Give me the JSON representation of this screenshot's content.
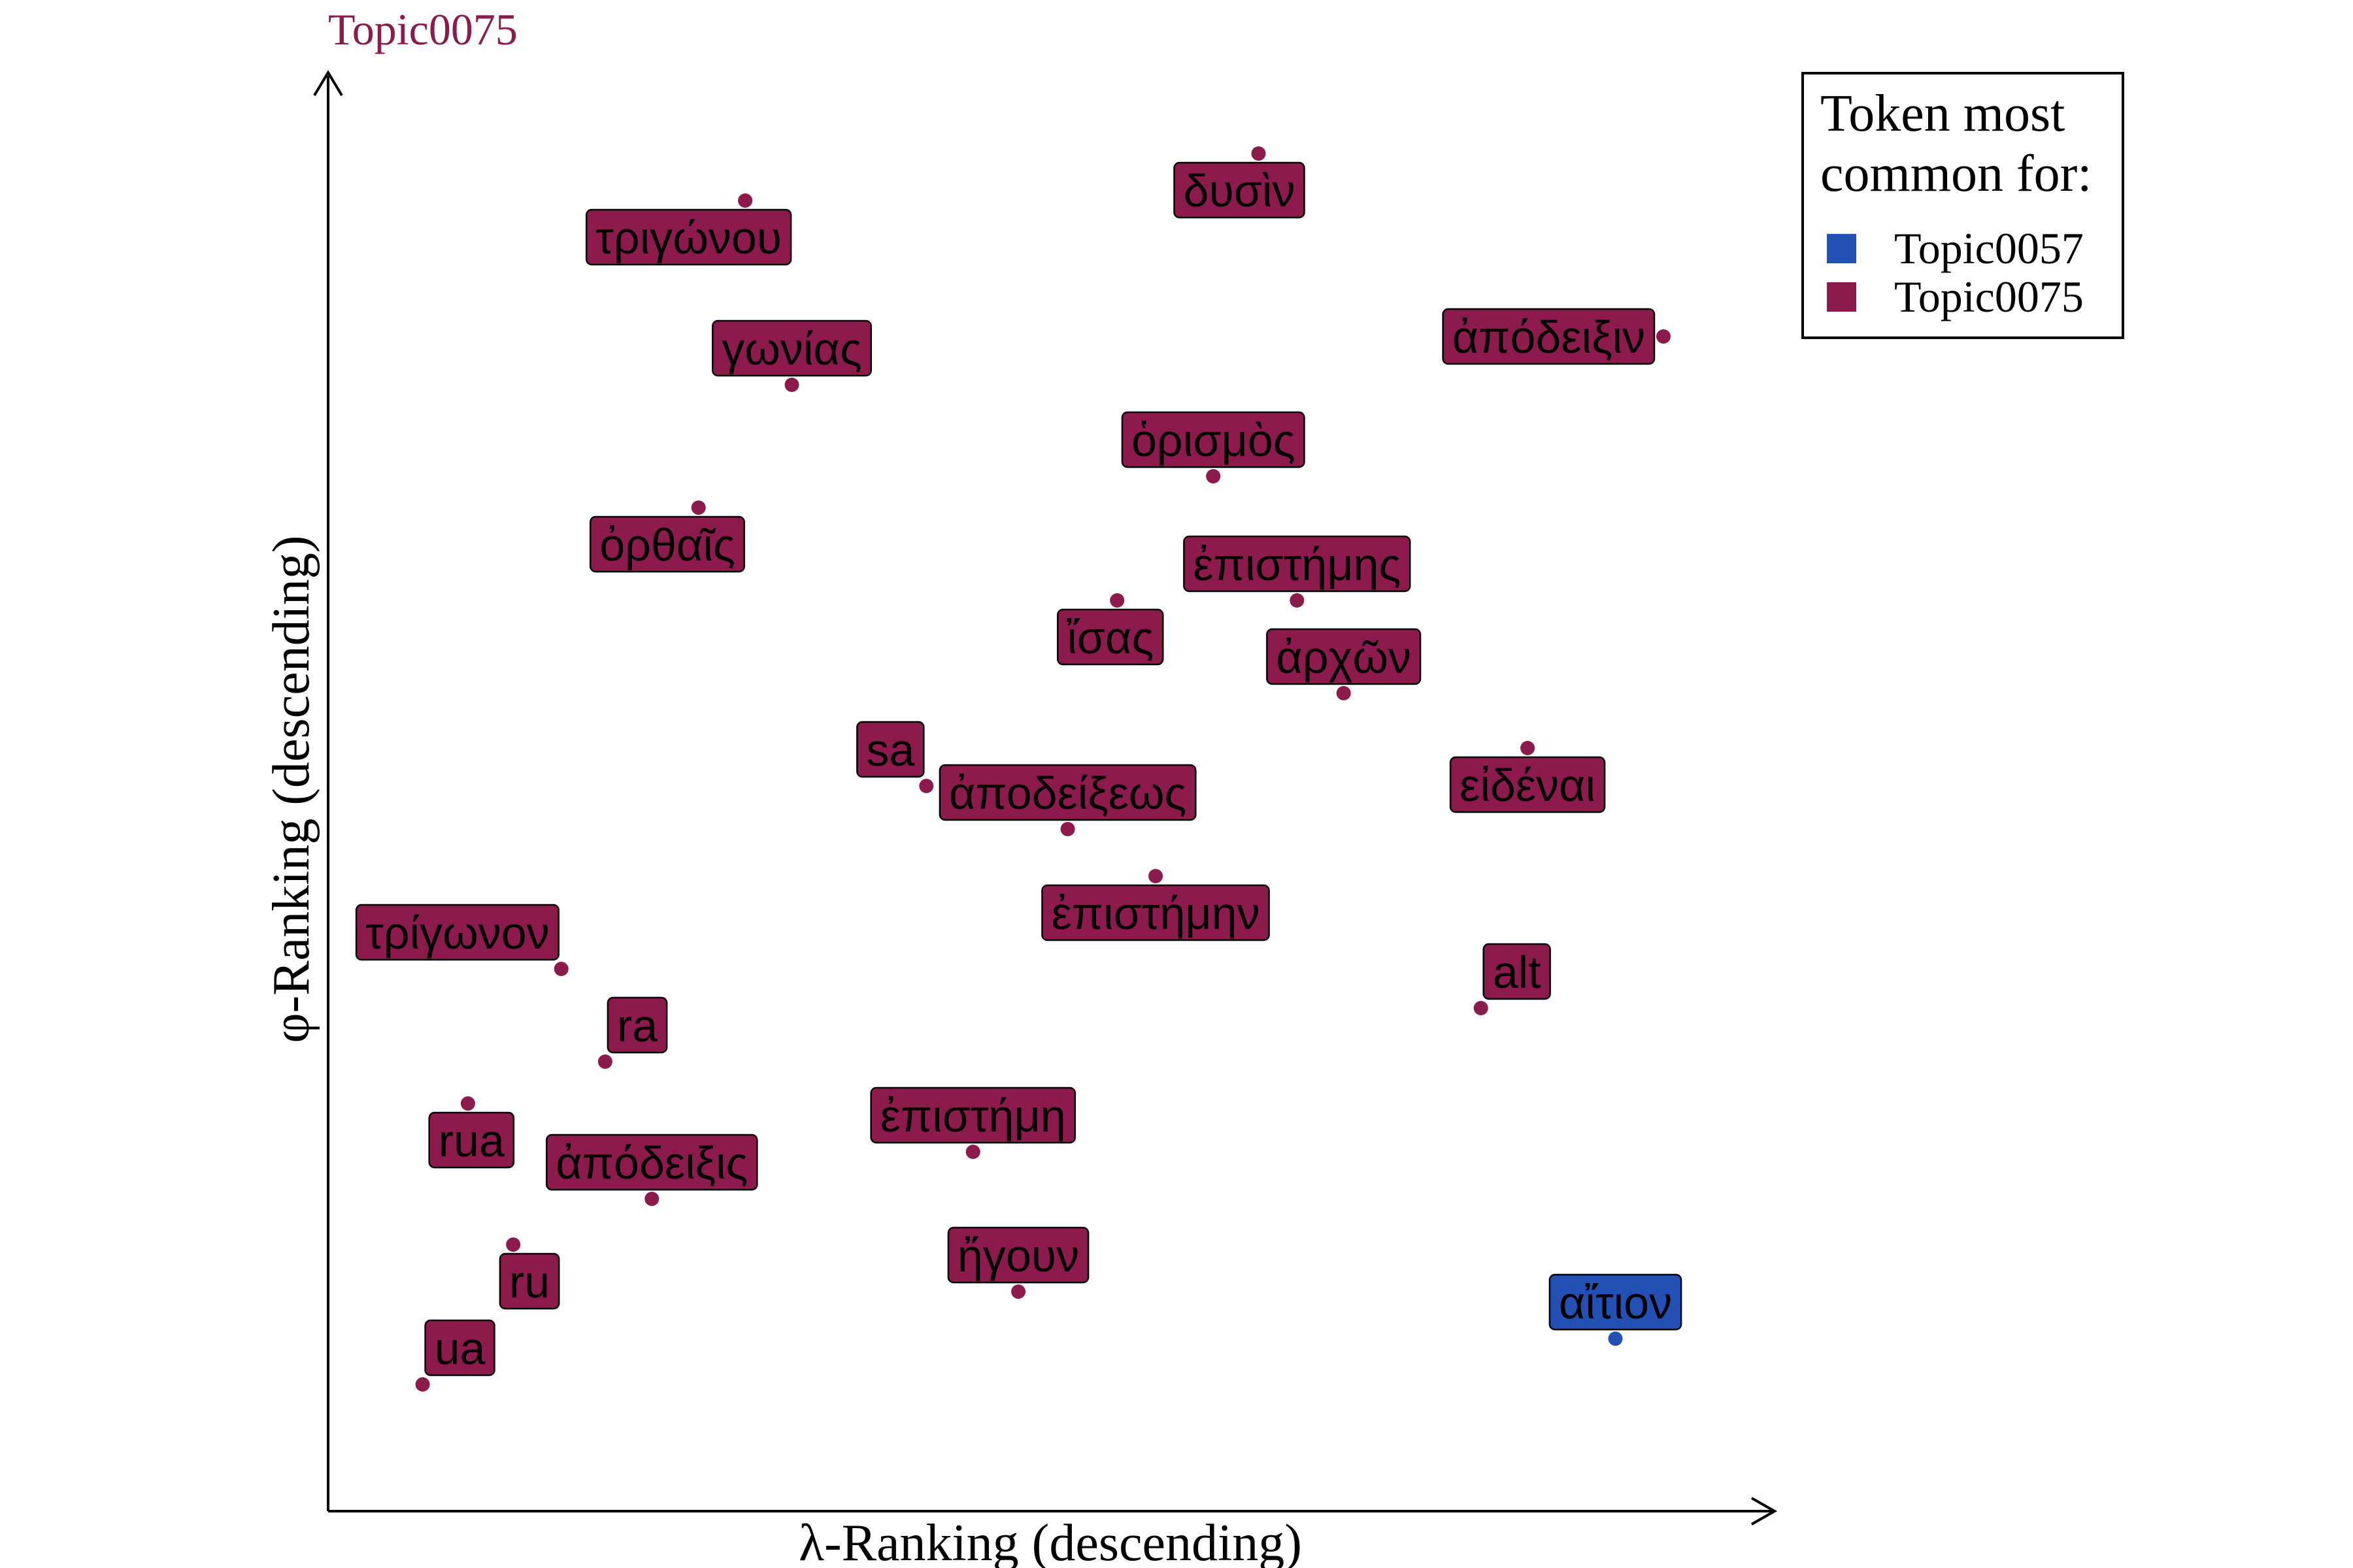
{
  "chart_data": {
    "type": "scatter",
    "title": "Topic0075",
    "xlabel": "λ-Ranking (descending)",
    "ylabel": "φ-Ranking (descending)",
    "legend": {
      "title_line1": "Token most",
      "title_line2": "common for:",
      "placement": "top-right",
      "entries": [
        {
          "label": "Topic0057",
          "color": "#2350b5"
        },
        {
          "label": "Topic0075",
          "color": "#8c1a4c"
        }
      ]
    },
    "colors": {
      "Topic0057": "#2350b5",
      "Topic0075": "#8c1a4c"
    },
    "axes": {
      "x_ticks": false,
      "y_ticks": false,
      "grid": false,
      "xlim": [
        0,
        100
      ],
      "ylim": [
        0,
        100
      ]
    },
    "points": [
      {
        "token": "δυσὶν",
        "x": 65.5,
        "y": 99.0,
        "topic": "Topic0075",
        "label_side": "below-left"
      },
      {
        "token": "τριγώνου",
        "x": 28.1,
        "y": 95.4,
        "topic": "Topic0075",
        "label_side": "below-left"
      },
      {
        "token": "ἀπόδειξιν",
        "x": 95.0,
        "y": 85.0,
        "topic": "Topic0075",
        "label_side": "left"
      },
      {
        "token": "γωνίας",
        "x": 31.5,
        "y": 81.3,
        "topic": "Topic0075",
        "label_side": "above"
      },
      {
        "token": "ὁρισμὸς",
        "x": 62.2,
        "y": 74.3,
        "topic": "Topic0075",
        "label_side": "above"
      },
      {
        "token": "ὀρθαῖς",
        "x": 24.7,
        "y": 71.9,
        "topic": "Topic0075",
        "label_side": "below-left"
      },
      {
        "token": "ἴσας",
        "x": 55.2,
        "y": 64.8,
        "topic": "Topic0075",
        "label_side": "below-left"
      },
      {
        "token": "ἐπιστήμης",
        "x": 68.3,
        "y": 64.8,
        "topic": "Topic0075",
        "label_side": "above"
      },
      {
        "token": "ἀρχῶν",
        "x": 71.7,
        "y": 57.7,
        "topic": "Topic0075",
        "label_side": "above"
      },
      {
        "token": "εἰδέναι",
        "x": 85.1,
        "y": 53.5,
        "topic": "Topic0075",
        "label_side": "below"
      },
      {
        "token": "sa",
        "x": 41.3,
        "y": 50.6,
        "topic": "Topic0075",
        "label_side": "above-left"
      },
      {
        "token": "ἀποδείξεως",
        "x": 51.6,
        "y": 47.3,
        "topic": "Topic0075",
        "label_side": "above"
      },
      {
        "token": "ἐπιστήμην",
        "x": 58.0,
        "y": 43.7,
        "topic": "Topic0075",
        "label_side": "below"
      },
      {
        "token": "τρίγωνον",
        "x": 14.7,
        "y": 36.6,
        "topic": "Topic0075",
        "label_side": "above-left"
      },
      {
        "token": "alt",
        "x": 81.7,
        "y": 33.6,
        "topic": "Topic0075",
        "label_side": "above-right"
      },
      {
        "token": "ra",
        "x": 17.9,
        "y": 29.5,
        "topic": "Topic0075",
        "label_side": "above-right"
      },
      {
        "token": "rua",
        "x": 7.9,
        "y": 26.3,
        "topic": "Topic0075",
        "label_side": "below-left"
      },
      {
        "token": "ἐπιστήμη",
        "x": 44.7,
        "y": 22.6,
        "topic": "Topic0075",
        "label_side": "above"
      },
      {
        "token": "ἀπόδειξις",
        "x": 21.3,
        "y": 19.0,
        "topic": "Topic0075",
        "label_side": "above"
      },
      {
        "token": "ru",
        "x": 11.2,
        "y": 15.5,
        "topic": "Topic0075",
        "label_side": "below-left"
      },
      {
        "token": "ἤγουν",
        "x": 48.0,
        "y": 11.9,
        "topic": "Topic0075",
        "label_side": "above"
      },
      {
        "token": "αἴτιον",
        "x": 91.5,
        "y": 8.3,
        "topic": "Topic0057",
        "label_side": "above"
      },
      {
        "token": "ua",
        "x": 4.6,
        "y": 4.8,
        "topic": "Topic0075",
        "label_side": "above-right"
      }
    ]
  }
}
